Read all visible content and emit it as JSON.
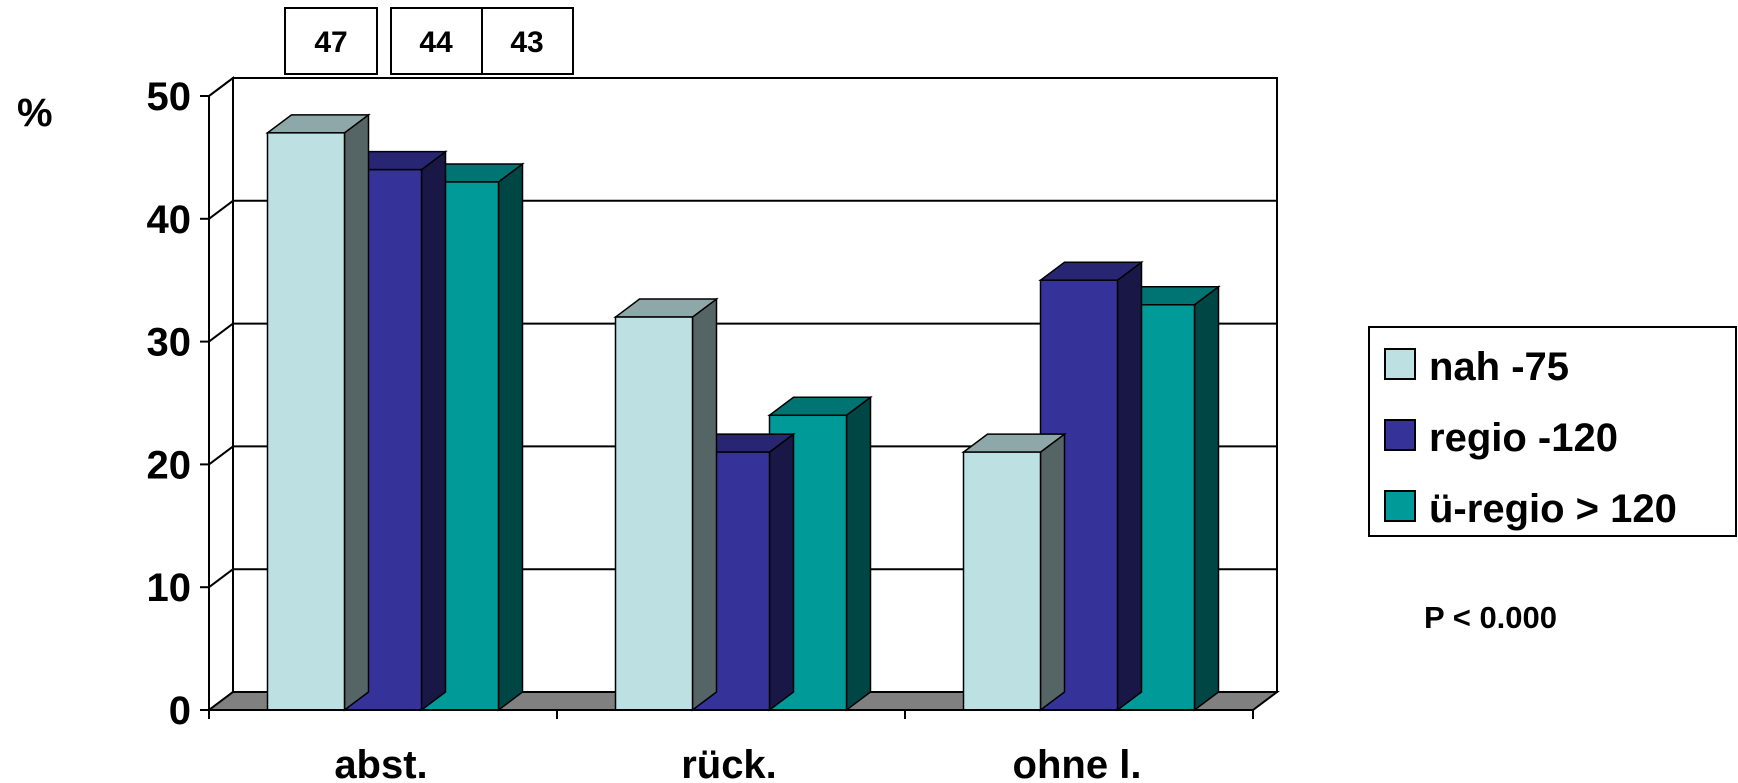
{
  "chart_data": {
    "type": "bar",
    "title": "",
    "xlabel": "",
    "ylabel": "%",
    "ylim": [
      0,
      50
    ],
    "yticks": [
      0,
      10,
      20,
      30,
      40,
      50
    ],
    "grid": true,
    "legend_position": "right",
    "categories": [
      "abst.",
      "rück.",
      "ohne l."
    ],
    "series": [
      {
        "name": "nah -75",
        "color": "#bde0e3",
        "values": [
          47,
          32,
          21
        ]
      },
      {
        "name": "regio -120",
        "color": "#353299",
        "values": [
          44,
          21,
          35
        ]
      },
      {
        "name": "ü-regio > 120",
        "color": "#009b99",
        "values": [
          43,
          24,
          33
        ]
      }
    ],
    "value_boxes": [
      "47",
      "44",
      "43"
    ],
    "annotation": "P < 0.000"
  }
}
